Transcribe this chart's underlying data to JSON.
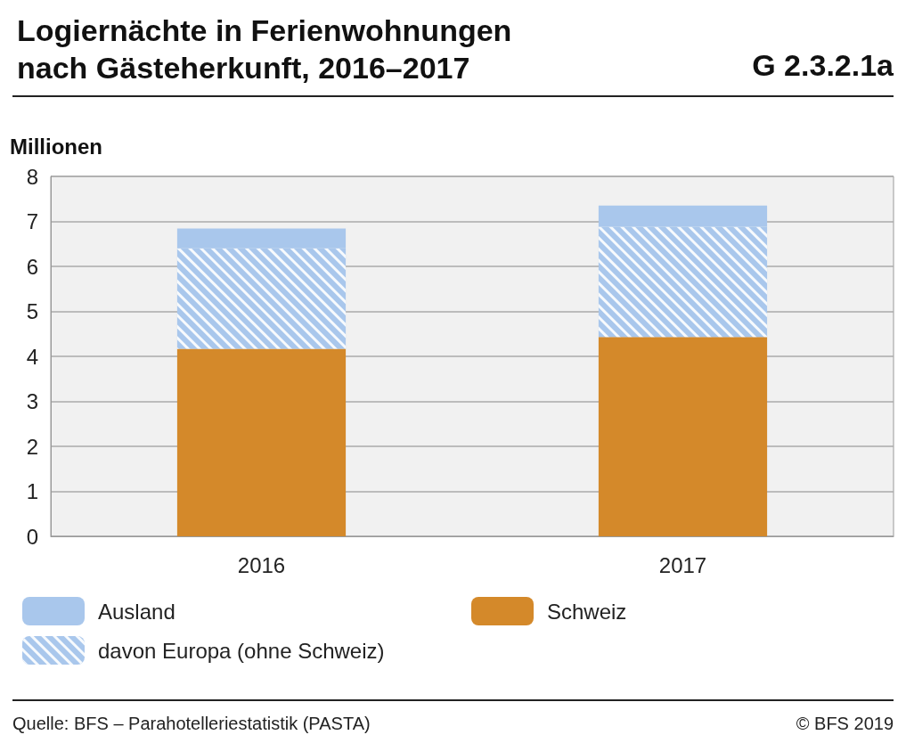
{
  "chart_data": {
    "type": "bar",
    "title": "Logiernächte in Ferienwohnungen nach Gästeherkunft, 2016–2017",
    "ylabel": "Millionen",
    "categories": [
      "2016",
      "2017"
    ],
    "stacked": true,
    "series": [
      {
        "name": "Schweiz",
        "color": "#d4892a",
        "values": [
          4.17,
          4.43
        ]
      },
      {
        "name": "davon Europa (ohne Schweiz)",
        "color": "#a9c7ec",
        "values": [
          2.23,
          2.45
        ]
      },
      {
        "name": "Ausland",
        "color": "#a9c7ec",
        "values": [
          0.44,
          0.47
        ]
      }
    ],
    "ylim": [
      0,
      8
    ],
    "yticks": [
      0,
      1,
      2,
      3,
      4,
      5,
      6,
      7,
      8
    ],
    "grid": "y",
    "legend": "bottom",
    "annotations": [
      "G 2.3.2.1a",
      "Quelle: BFS – Parahotelleriestatistik (PASTA)",
      "© BFS 2019"
    ]
  }
}
